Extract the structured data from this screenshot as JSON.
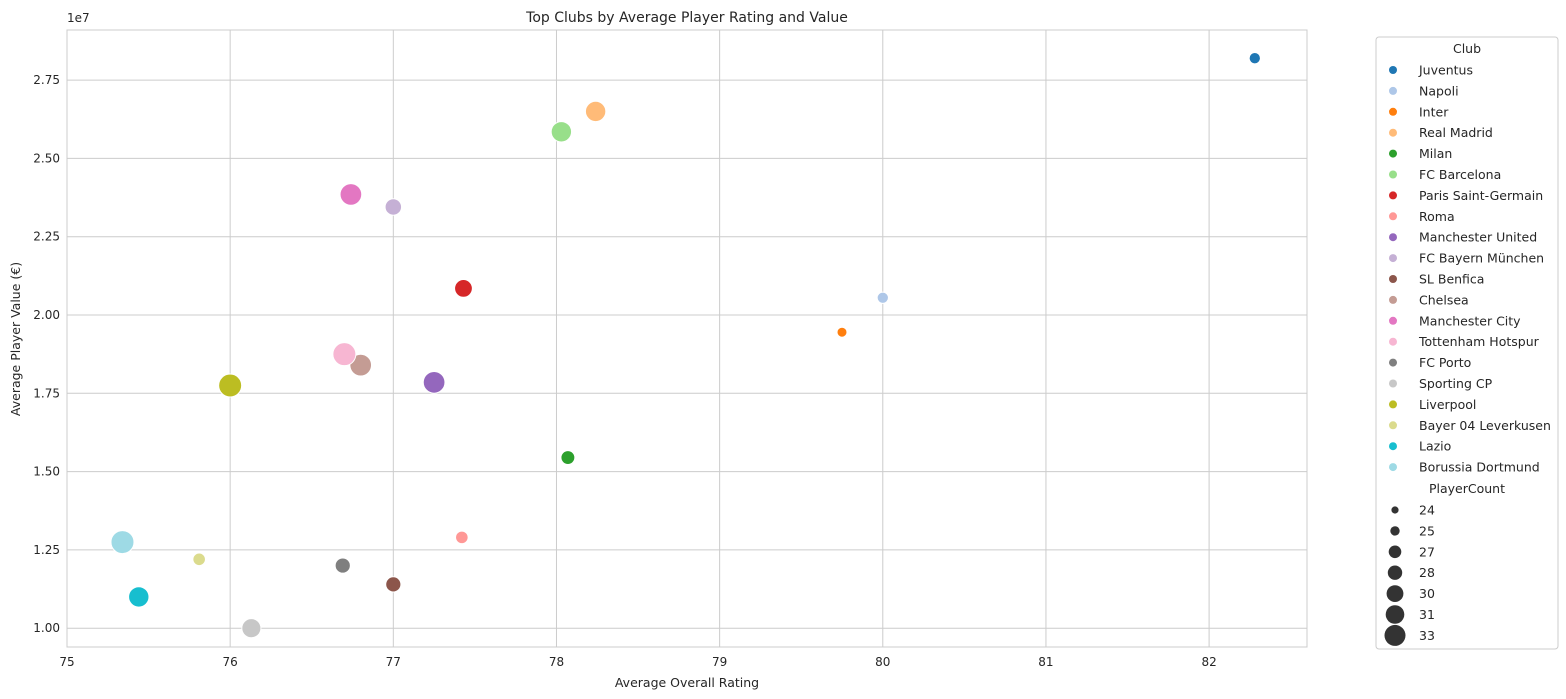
{
  "chart_data": {
    "type": "scatter",
    "title": "Top Clubs by Average Player Rating and Value",
    "xlabel": "Average Overall Rating",
    "ylabel": "Average Player Value (€)",
    "y_offset_label": "1e7",
    "xlim": [
      75.0,
      82.6
    ],
    "ylim": [
      9400000,
      29100000
    ],
    "x_ticks": [
      75,
      76,
      77,
      78,
      79,
      80,
      81,
      82
    ],
    "y_ticks": [
      10000000,
      12500000,
      15000000,
      17500000,
      20000000,
      22500000,
      25000000,
      27500000
    ],
    "y_tick_labels": [
      "1.00",
      "1.25",
      "1.50",
      "1.75",
      "2.00",
      "2.25",
      "2.50",
      "2.75"
    ],
    "grid": true,
    "legend_position": "outside-right",
    "hue_title": "Club",
    "size_title": "PlayerCount",
    "size_legend_values": [
      24,
      25,
      27,
      28,
      30,
      31,
      33
    ],
    "series": [
      {
        "name": "Juventus",
        "color": "#1f77b4",
        "x": 82.28,
        "y": 28200000,
        "size": 24
      },
      {
        "name": "Napoli",
        "color": "#aec7e8",
        "x": 80.0,
        "y": 20550000,
        "size": 24
      },
      {
        "name": "Inter",
        "color": "#ff7f0e",
        "x": 79.75,
        "y": 19450000,
        "size": 23
      },
      {
        "name": "Real Madrid",
        "color": "#ffbb78",
        "x": 78.24,
        "y": 26500000,
        "size": 31
      },
      {
        "name": "Milan",
        "color": "#2ca02c",
        "x": 78.07,
        "y": 15450000,
        "size": 26
      },
      {
        "name": "FC Barcelona",
        "color": "#98df8a",
        "x": 78.03,
        "y": 25850000,
        "size": 31
      },
      {
        "name": "Paris Saint-Germain",
        "color": "#d62728",
        "x": 77.43,
        "y": 20850000,
        "size": 29
      },
      {
        "name": "Roma",
        "color": "#ff9896",
        "x": 77.42,
        "y": 12900000,
        "size": 25
      },
      {
        "name": "Manchester United",
        "color": "#9467bd",
        "x": 77.25,
        "y": 17850000,
        "size": 32
      },
      {
        "name": "FC Bayern München",
        "color": "#c5b0d5",
        "x": 77.0,
        "y": 23450000,
        "size": 28
      },
      {
        "name": "SL Benfica",
        "color": "#8c564b",
        "x": 77.0,
        "y": 11400000,
        "size": 27
      },
      {
        "name": "Chelsea",
        "color": "#c49c94",
        "x": 76.8,
        "y": 18400000,
        "size": 32
      },
      {
        "name": "Manchester City",
        "color": "#e377c2",
        "x": 76.74,
        "y": 23850000,
        "size": 32
      },
      {
        "name": "Tottenham Hotspur",
        "color": "#f7b6d2",
        "x": 76.7,
        "y": 18750000,
        "size": 33
      },
      {
        "name": "FC Porto",
        "color": "#7f7f7f",
        "x": 76.69,
        "y": 12000000,
        "size": 27
      },
      {
        "name": "Sporting CP",
        "color": "#c7c7c7",
        "x": 76.13,
        "y": 10000000,
        "size": 30
      },
      {
        "name": "Liverpool",
        "color": "#bcbd22",
        "x": 76.0,
        "y": 17750000,
        "size": 33
      },
      {
        "name": "Bayer 04 Leverkusen",
        "color": "#dbdb8d",
        "x": 75.81,
        "y": 12200000,
        "size": 25
      },
      {
        "name": "Lazio",
        "color": "#17becf",
        "x": 75.44,
        "y": 11000000,
        "size": 31
      },
      {
        "name": "Borussia Dortmund",
        "color": "#9edae5",
        "x": 75.34,
        "y": 12750000,
        "size": 33
      }
    ]
  }
}
